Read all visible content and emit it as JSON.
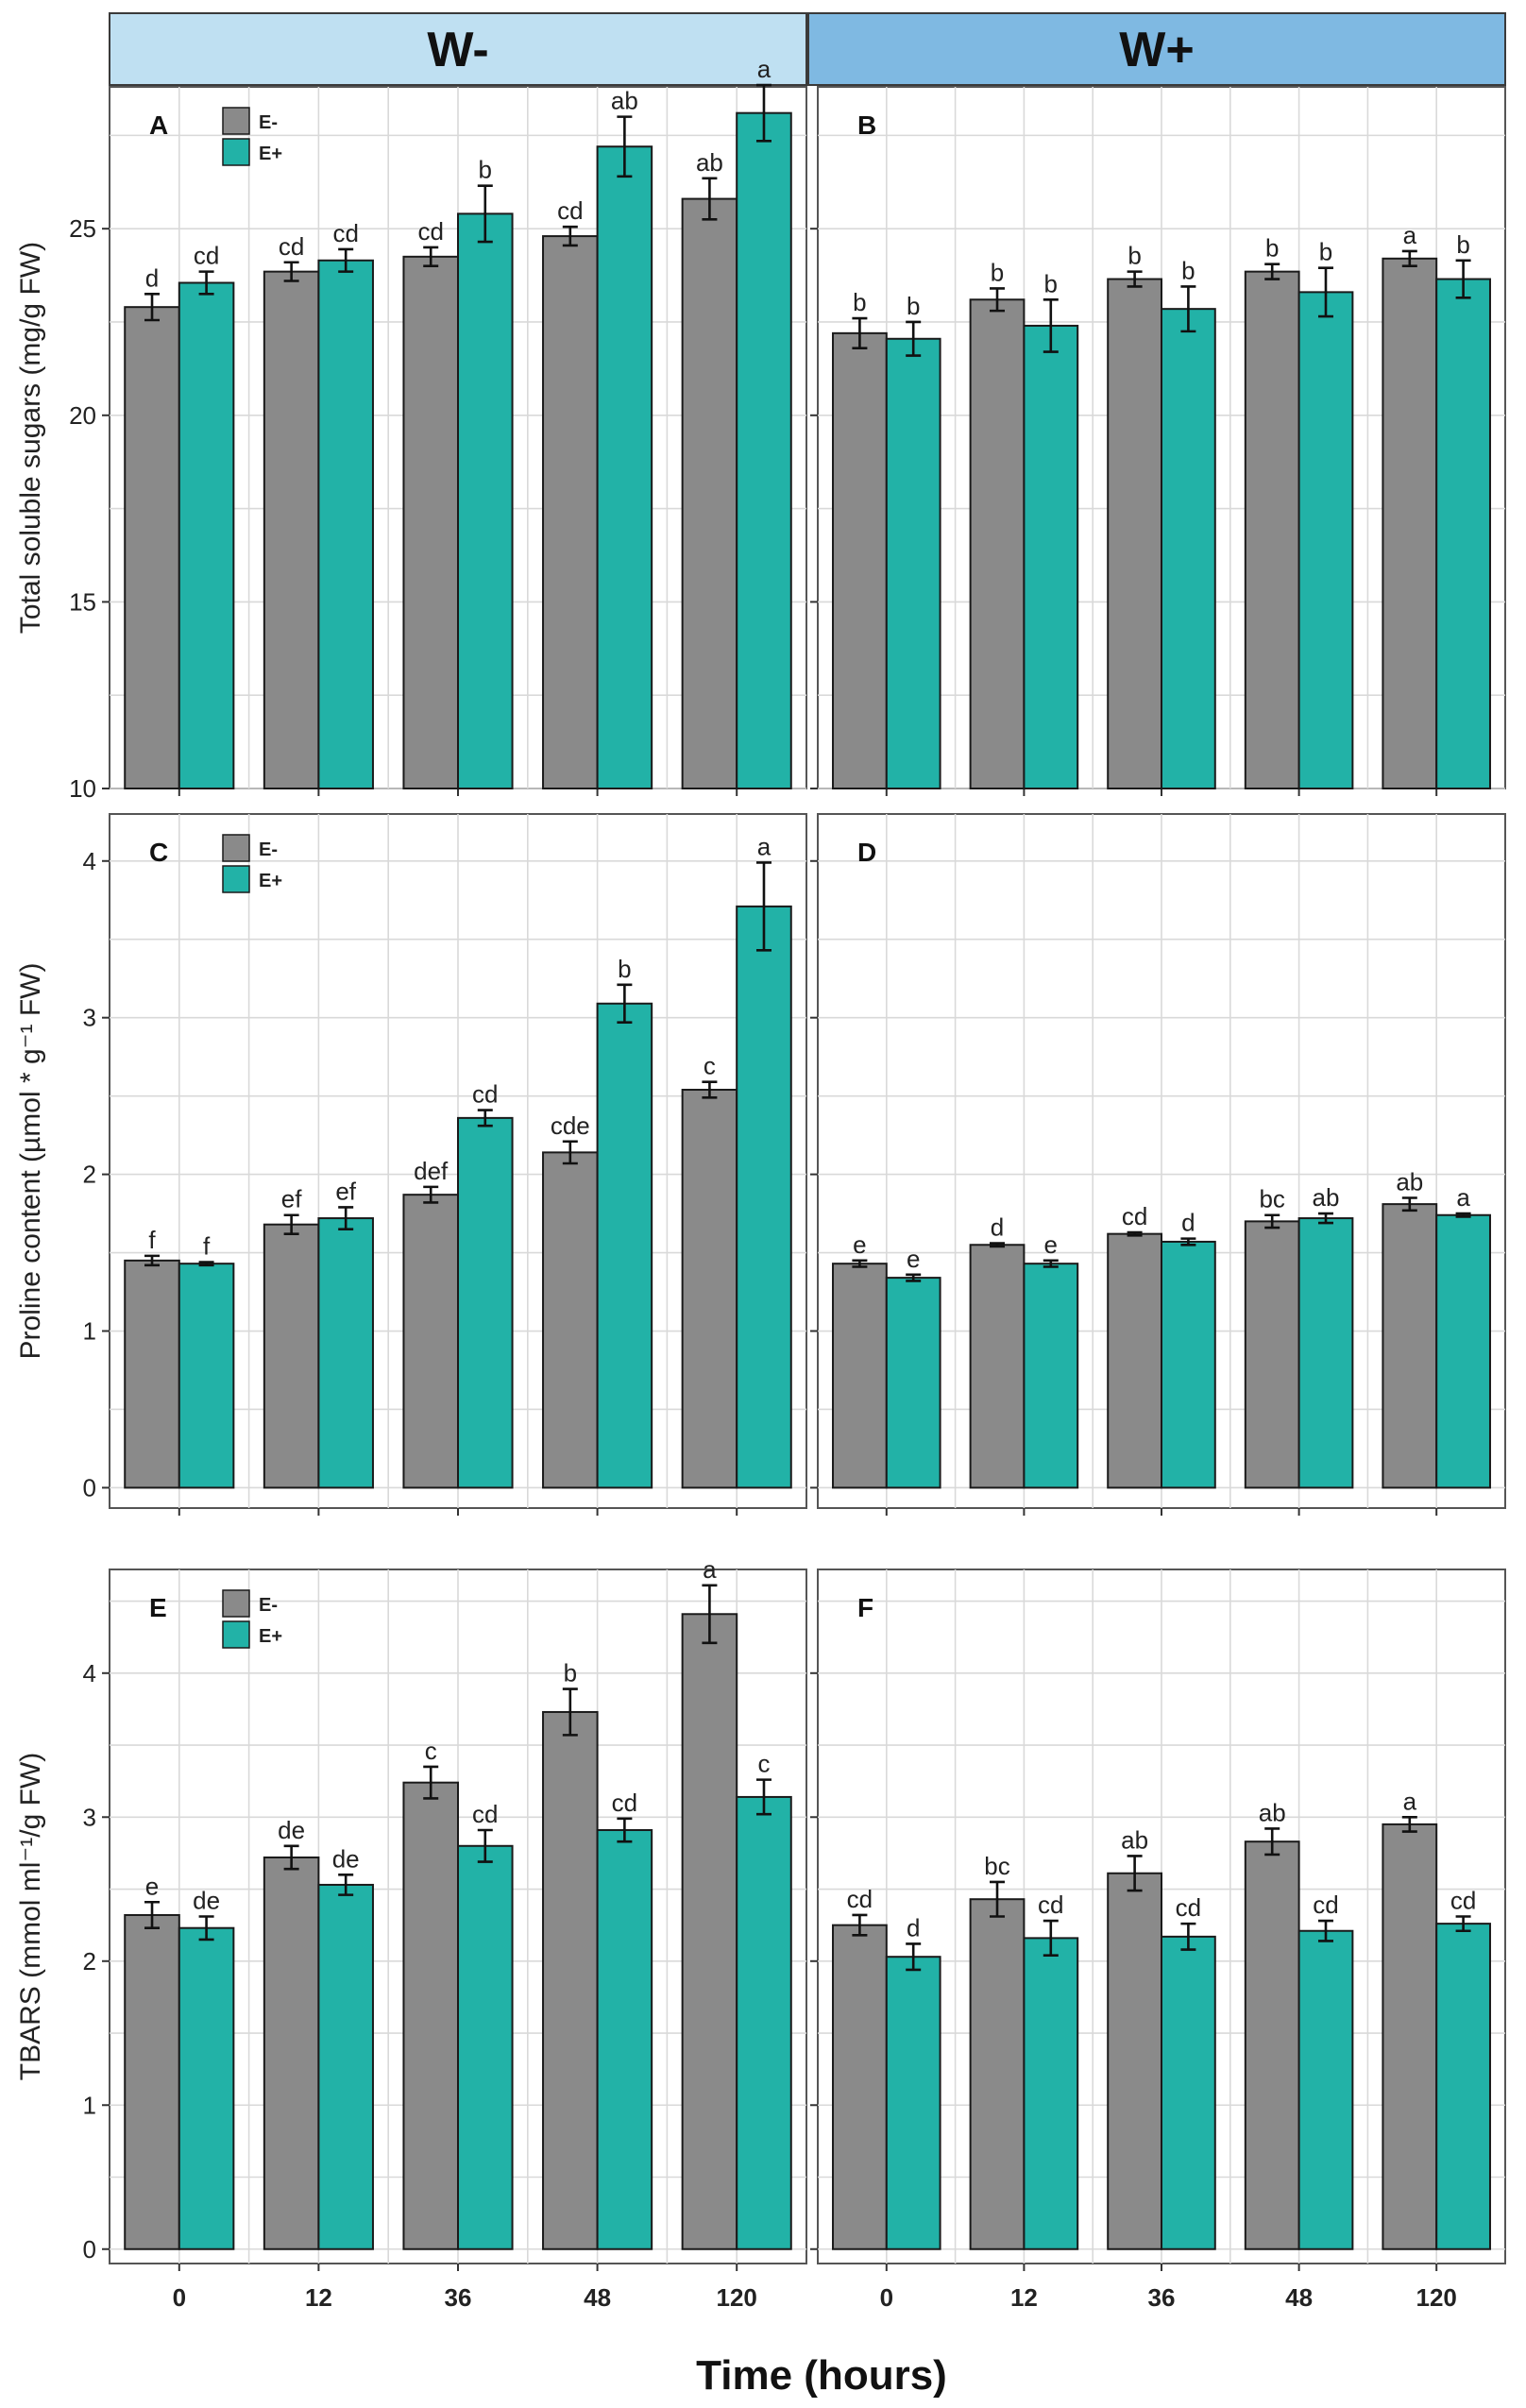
{
  "headers": {
    "left": "W-",
    "right": "W+"
  },
  "x_axis_title": "Time (hours)",
  "legend": [
    "E-",
    "E+"
  ],
  "colors": {
    "e_minus": "#8a8a8a",
    "e_plus": "#22b2a7",
    "header_left": "#bfe0f2",
    "header_right": "#7fb9e2"
  },
  "chart_data": [
    {
      "type": "bar",
      "panel": "A",
      "group": "W-",
      "ylabel": "Total soluble sugars (mg/g FW)",
      "categories": [
        "0",
        "12",
        "36",
        "48",
        "120"
      ],
      "ylim": [
        10,
        28.8
      ],
      "ybase": 10,
      "yticks": [
        10,
        15,
        20,
        25
      ],
      "ytick_labels": [
        "10",
        "15",
        "20",
        "25"
      ],
      "legend_shown": true,
      "series": [
        {
          "name": "E-",
          "values": [
            22.9,
            23.85,
            24.25,
            24.8,
            25.8
          ],
          "errors": [
            0.35,
            0.25,
            0.25,
            0.25,
            0.55
          ],
          "letters": [
            "d",
            "cd",
            "cd",
            "cd",
            "ab"
          ]
        },
        {
          "name": "E+",
          "values": [
            23.55,
            24.15,
            25.4,
            27.2,
            28.1
          ],
          "errors": [
            0.3,
            0.3,
            0.75,
            0.8,
            0.75
          ],
          "letters": [
            "cd",
            "cd",
            "b",
            "ab",
            "a"
          ]
        }
      ]
    },
    {
      "type": "bar",
      "panel": "B",
      "group": "W+",
      "ylabel": "",
      "categories": [
        "0",
        "12",
        "36",
        "48",
        "120"
      ],
      "ylim": [
        10,
        28.8
      ],
      "ybase": 10,
      "yticks": [
        10,
        15,
        20,
        25
      ],
      "ytick_labels": [],
      "legend_shown": false,
      "series": [
        {
          "name": "E-",
          "values": [
            22.2,
            23.1,
            23.65,
            23.85,
            24.2
          ],
          "errors": [
            0.4,
            0.3,
            0.2,
            0.2,
            0.2
          ],
          "letters": [
            "b",
            "b",
            "b",
            "b",
            "a"
          ]
        },
        {
          "name": "E+",
          "values": [
            22.05,
            22.4,
            22.85,
            23.3,
            23.65
          ],
          "errors": [
            0.45,
            0.7,
            0.6,
            0.65,
            0.5
          ],
          "letters": [
            "b",
            "b",
            "b",
            "b",
            "b"
          ]
        }
      ]
    },
    {
      "type": "bar",
      "panel": "C",
      "group": "W-",
      "ylabel": "Proline content (µmol * g⁻¹ FW)",
      "categories": [
        "0",
        "12",
        "36",
        "48",
        "120"
      ],
      "ylim": [
        -0.13,
        4.3
      ],
      "ybase": 0,
      "yticks": [
        0,
        1,
        2,
        3,
        4
      ],
      "ytick_labels": [
        "0",
        "1",
        "2",
        "3",
        "4"
      ],
      "legend_shown": true,
      "series": [
        {
          "name": "E-",
          "values": [
            1.45,
            1.68,
            1.87,
            2.14,
            2.54
          ],
          "errors": [
            0.03,
            0.06,
            0.05,
            0.07,
            0.05
          ],
          "letters": [
            "f",
            "ef",
            "def",
            "cde",
            "c"
          ]
        },
        {
          "name": "E+",
          "values": [
            1.43,
            1.72,
            2.36,
            3.09,
            3.71
          ],
          "errors": [
            0.01,
            0.07,
            0.05,
            0.12,
            0.28
          ],
          "letters": [
            "f",
            "ef",
            "cd",
            "b",
            "a"
          ]
        }
      ]
    },
    {
      "type": "bar",
      "panel": "D",
      "group": "W+",
      "ylabel": "",
      "categories": [
        "0",
        "12",
        "36",
        "48",
        "120"
      ],
      "ylim": [
        -0.13,
        4.3
      ],
      "ybase": 0,
      "yticks": [
        0,
        1,
        2,
        3,
        4
      ],
      "ytick_labels": [],
      "legend_shown": false,
      "series": [
        {
          "name": "E-",
          "values": [
            1.43,
            1.55,
            1.62,
            1.7,
            1.81
          ],
          "errors": [
            0.02,
            0.01,
            0.01,
            0.04,
            0.04
          ],
          "letters": [
            "e",
            "d",
            "cd",
            "bc",
            "ab"
          ]
        },
        {
          "name": "E+",
          "values": [
            1.34,
            1.43,
            1.57,
            1.72,
            1.74
          ],
          "errors": [
            0.02,
            0.02,
            0.02,
            0.03,
            0.01
          ],
          "letters": [
            "e",
            "e",
            "d",
            "ab",
            "a"
          ]
        }
      ]
    },
    {
      "type": "bar",
      "panel": "E",
      "group": "W-",
      "ylabel": "TBARS (mmol ml⁻¹/g FW)",
      "categories": [
        "0",
        "12",
        "36",
        "48",
        "120"
      ],
      "ylim": [
        -0.1,
        4.72
      ],
      "ybase": 0,
      "yticks": [
        0,
        1,
        2,
        3,
        4
      ],
      "ytick_labels": [
        "0",
        "1",
        "2",
        "3",
        "4"
      ],
      "legend_shown": true,
      "series": [
        {
          "name": "E-",
          "values": [
            2.32,
            2.72,
            3.24,
            3.73,
            4.41
          ],
          "errors": [
            0.09,
            0.08,
            0.11,
            0.16,
            0.2
          ],
          "letters": [
            "e",
            "de",
            "c",
            "b",
            "a"
          ]
        },
        {
          "name": "E+",
          "values": [
            2.23,
            2.53,
            2.8,
            2.91,
            3.14
          ],
          "errors": [
            0.08,
            0.07,
            0.11,
            0.08,
            0.12
          ],
          "letters": [
            "de",
            "de",
            "cd",
            "cd",
            "c"
          ]
        }
      ]
    },
    {
      "type": "bar",
      "panel": "F",
      "group": "W+",
      "ylabel": "",
      "categories": [
        "0",
        "12",
        "36",
        "48",
        "120"
      ],
      "ylim": [
        -0.1,
        4.72
      ],
      "ybase": 0,
      "yticks": [
        0,
        1,
        2,
        3,
        4
      ],
      "ytick_labels": [],
      "legend_shown": false,
      "series": [
        {
          "name": "E-",
          "values": [
            2.25,
            2.43,
            2.61,
            2.83,
            2.95
          ],
          "errors": [
            0.07,
            0.12,
            0.12,
            0.09,
            0.05
          ],
          "letters": [
            "cd",
            "bc",
            "ab",
            "ab",
            "a"
          ]
        },
        {
          "name": "E+",
          "values": [
            2.03,
            2.16,
            2.17,
            2.21,
            2.26
          ],
          "errors": [
            0.09,
            0.12,
            0.09,
            0.07,
            0.05
          ],
          "letters": [
            "d",
            "cd",
            "cd",
            "cd",
            "cd"
          ]
        }
      ]
    }
  ]
}
